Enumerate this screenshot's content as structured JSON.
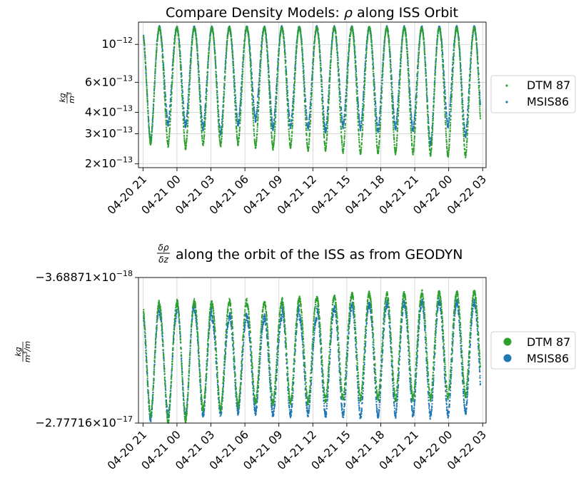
{
  "colors": {
    "dtm": "#2ca02c",
    "msis": "#1f77b4",
    "grid": "#cccccc",
    "axis": "#000000"
  },
  "chart_data": [
    {
      "type": "scatter",
      "title": "Compare Density Models: ρ along ISS Orbit",
      "ylabel_num": "kg",
      "ylabel_den": "m³",
      "yscale": "log",
      "ylim": [
        1.9e-13,
        1.35e-12
      ],
      "xlim_hours": [
        -0.4,
        30.3
      ],
      "x_ticks": [
        0,
        3,
        6,
        9,
        12,
        15,
        18,
        21,
        24,
        27,
        30
      ],
      "x_tick_labels": [
        "04-20 21",
        "04-21 00",
        "04-21 03",
        "04-21 06",
        "04-21 09",
        "04-21 12",
        "04-21 15",
        "04-21 18",
        "04-21 21",
        "04-22 00",
        "04-22 03"
      ],
      "y_ticks": [
        {
          "value": 1e-12,
          "mant": "",
          "exp": "−12"
        },
        {
          "value": 6e-13,
          "mant": "6",
          "exp": "−13"
        },
        {
          "value": 4e-13,
          "mant": "4",
          "exp": "−13"
        },
        {
          "value": 3e-13,
          "mant": "3",
          "exp": "−13"
        },
        {
          "value": 2e-13,
          "mant": "2",
          "exp": "−13"
        }
      ],
      "grid": true,
      "legend": "outside-right",
      "legend_marker": "small",
      "orbit_period_h": 1.545,
      "x_start_h": 0.05,
      "x_end_h": 29.8,
      "maxima_approx": 1.25e-12,
      "minima": [
        {
          "orbit": 1,
          "dtm": 2.6e-13,
          "msis": 2.7e-13
        },
        {
          "orbit": 2,
          "dtm": 2.55e-13,
          "msis": 3.4e-13
        },
        {
          "orbit": 3,
          "dtm": 2.45e-13,
          "msis": 3.3e-13
        },
        {
          "orbit": 4,
          "dtm": 2.6e-13,
          "msis": 3.2e-13
        },
        {
          "orbit": 5,
          "dtm": 2.55e-13,
          "msis": 3e-13
        },
        {
          "orbit": 6,
          "dtm": 2.6e-13,
          "msis": 3.4e-13
        },
        {
          "orbit": 7,
          "dtm": 2.5e-13,
          "msis": 3.6e-13
        },
        {
          "orbit": 8,
          "dtm": 2.45e-13,
          "msis": 3.2e-13
        },
        {
          "orbit": 9,
          "dtm": 2.5e-13,
          "msis": 3.3e-13
        },
        {
          "orbit": 10,
          "dtm": 2.4e-13,
          "msis": 3.2e-13
        },
        {
          "orbit": 11,
          "dtm": 2.4e-13,
          "msis": 3.1e-13
        },
        {
          "orbit": 12,
          "dtm": 2.35e-13,
          "msis": 3.3e-13
        },
        {
          "orbit": 13,
          "dtm": 2.3e-13,
          "msis": 3.2e-13
        },
        {
          "orbit": 14,
          "dtm": 2.3e-13,
          "msis": 3.1e-13
        },
        {
          "orbit": 15,
          "dtm": 2.3e-13,
          "msis": 3.2e-13
        },
        {
          "orbit": 16,
          "dtm": 2.3e-13,
          "msis": 3.1e-13
        },
        {
          "orbit": 17,
          "dtm": 2.25e-13,
          "msis": 2.6e-13
        },
        {
          "orbit": 18,
          "dtm": 2.2e-13,
          "msis": 3.3e-13
        },
        {
          "orbit": 19,
          "dtm": 2.2e-13,
          "msis": 2.9e-13
        }
      ],
      "series": [
        {
          "name": "DTM 87",
          "color": "#2ca02c"
        },
        {
          "name": "MSIS86",
          "color": "#1f77b4"
        }
      ]
    },
    {
      "type": "scatter",
      "title_frac_num": "δρ",
      "title_frac_den": "δz",
      "title_rest": "along the orbit of the ISS as from GEODYN",
      "ylabel_num": "kg",
      "ylabel_den": "m³/m",
      "yscale": "log",
      "ylim": [
        -3.68871e-18,
        -2.77716e-17
      ],
      "xlim_hours": [
        -0.4,
        30.3
      ],
      "x_ticks": [
        0,
        3,
        6,
        9,
        12,
        15,
        18,
        21,
        24,
        27,
        30
      ],
      "x_tick_labels": [
        "04-20 21",
        "04-21 00",
        "04-21 03",
        "04-21 06",
        "04-21 09",
        "04-21 12",
        "04-21 15",
        "04-21 18",
        "04-21 21",
        "04-22 00",
        "04-22 03"
      ],
      "y_ticks": [
        {
          "value": -3.68871e-18,
          "mant": "−3.68871",
          "exp": "−18"
        },
        {
          "value": -2.77716e-17,
          "mant": "−2.77716",
          "exp": "−17"
        }
      ],
      "grid": true,
      "legend": "outside-right",
      "legend_marker": "large",
      "orbit_period_h": 1.545,
      "x_start_h": 0.05,
      "x_end_h": 29.8,
      "peaks": [
        {
          "orbit": 1,
          "dtm": -5.2e-18,
          "msis": -5.5e-18
        },
        {
          "orbit": 2,
          "dtm": -5.4e-18,
          "msis": -6e-18
        },
        {
          "orbit": 3,
          "dtm": -5.1e-18,
          "msis": -5.3e-18
        },
        {
          "orbit": 4,
          "dtm": -5.2e-18,
          "msis": -5.8e-18
        },
        {
          "orbit": 5,
          "dtm": -5.3e-18,
          "msis": -6.5e-18
        },
        {
          "orbit": 6,
          "dtm": -5.1e-18,
          "msis": -6.2e-18
        },
        {
          "orbit": 7,
          "dtm": -5.3e-18,
          "msis": -6.5e-18
        },
        {
          "orbit": 8,
          "dtm": -5.2e-18,
          "msis": -6.4e-18
        },
        {
          "orbit": 9,
          "dtm": -5e-18,
          "msis": -5.6e-18
        },
        {
          "orbit": 10,
          "dtm": -4.9e-18,
          "msis": -6.4e-18
        },
        {
          "orbit": 11,
          "dtm": -4.9e-18,
          "msis": -5.7e-18
        },
        {
          "orbit": 12,
          "dtm": -4.8e-18,
          "msis": -5.6e-18
        },
        {
          "orbit": 13,
          "dtm": -4.6e-18,
          "msis": -5.3e-18
        },
        {
          "orbit": 14,
          "dtm": -4.7e-18,
          "msis": -5.4e-18
        },
        {
          "orbit": 15,
          "dtm": -4.6e-18,
          "msis": -5.2e-18
        },
        {
          "orbit": 16,
          "dtm": -4.7e-18,
          "msis": -5.3e-18
        },
        {
          "orbit": 17,
          "dtm": -4.5e-18,
          "msis": -5.1e-18
        },
        {
          "orbit": 18,
          "dtm": -4.6e-18,
          "msis": -5.2e-18
        },
        {
          "orbit": 19,
          "dtm": -4.5e-18,
          "msis": -5.2e-18
        }
      ],
      "troughs": [
        {
          "orbit": 1,
          "dtm": -2.5e-17,
          "msis": -2.65e-17
        },
        {
          "orbit": 2,
          "dtm": -2.75e-17,
          "msis": -2.5e-17
        },
        {
          "orbit": 3,
          "dtm": -2.7e-17,
          "msis": -2.55e-17
        },
        {
          "orbit": 4,
          "dtm": -2.3e-17,
          "msis": -2.5e-17
        },
        {
          "orbit": 5,
          "dtm": -2.3e-17,
          "msis": -2.45e-17
        },
        {
          "orbit": 6,
          "dtm": -2.2e-17,
          "msis": -2.4e-17
        },
        {
          "orbit": 7,
          "dtm": -2.1e-17,
          "msis": -2.4e-17
        },
        {
          "orbit": 8,
          "dtm": -2.1e-17,
          "msis": -2.5e-17
        },
        {
          "orbit": 9,
          "dtm": -2.1e-17,
          "msis": -2.5e-17
        },
        {
          "orbit": 10,
          "dtm": -2.1e-17,
          "msis": -2.45e-17
        },
        {
          "orbit": 11,
          "dtm": -2.05e-17,
          "msis": -2.5e-17
        },
        {
          "orbit": 12,
          "dtm": -2e-17,
          "msis": -2.5e-17
        },
        {
          "orbit": 13,
          "dtm": -2e-17,
          "msis": -2.55e-17
        },
        {
          "orbit": 14,
          "dtm": -2e-17,
          "msis": -2.55e-17
        },
        {
          "orbit": 15,
          "dtm": -2e-17,
          "msis": -2.5e-17
        },
        {
          "orbit": 16,
          "dtm": -2e-17,
          "msis": -2.5e-17
        },
        {
          "orbit": 17,
          "dtm": -2e-17,
          "msis": -2.55e-17
        },
        {
          "orbit": 18,
          "dtm": -1.95e-17,
          "msis": -2.5e-17
        },
        {
          "orbit": 19,
          "dtm": -1.9e-17,
          "msis": -2.4e-17
        }
      ],
      "series": [
        {
          "name": "DTM 87",
          "color": "#2ca02c"
        },
        {
          "name": "MSIS86",
          "color": "#1f77b4"
        }
      ]
    }
  ]
}
